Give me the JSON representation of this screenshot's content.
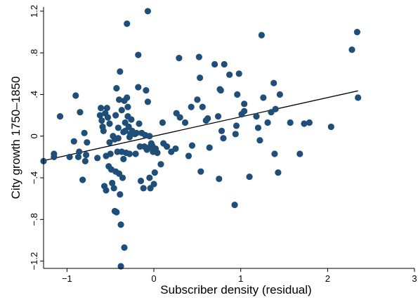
{
  "chart_data": {
    "type": "scatter",
    "title": "",
    "xlabel": "Subscriber density (residual)",
    "ylabel": "City growth 1750–1850",
    "xlim": [
      -1.27,
      3.0
    ],
    "ylim": [
      -1.27,
      1.24
    ],
    "x_ticks": [
      -1,
      0,
      1,
      2,
      3
    ],
    "x_tick_labels": [
      "−1",
      "0",
      "1",
      "2",
      "3"
    ],
    "y_ticks": [
      -1.2,
      -0.8,
      -0.4,
      0,
      0.4,
      0.8,
      1.2
    ],
    "y_tick_labels": [
      "−1.2",
      "−.8",
      "−.4",
      "0",
      ".4",
      ".8",
      "1.2"
    ],
    "grid": false,
    "colors": {
      "point": "#1f4e79",
      "fit_line": "#000000",
      "axis": "#000000"
    },
    "fit_line": {
      "x": [
        -1.27,
        2.35
      ],
      "y": [
        -0.235,
        0.435
      ]
    },
    "series": [
      {
        "points": [
          [
            -1.27,
            -0.24
          ],
          [
            -1.15,
            -0.17
          ],
          [
            -1.15,
            -0.2
          ],
          [
            -1.08,
            0.19
          ],
          [
            -0.97,
            -0.2
          ],
          [
            -0.92,
            -0.05
          ],
          [
            -0.9,
            0.39
          ],
          [
            -0.87,
            -0.2
          ],
          [
            -0.86,
            -0.15
          ],
          [
            -0.85,
            0.23
          ],
          [
            -0.82,
            -0.42
          ],
          [
            -0.8,
            0.03
          ],
          [
            -0.79,
            -0.24
          ],
          [
            -0.77,
            -0.06
          ],
          [
            -0.78,
            -0.18
          ],
          [
            -0.65,
            -0.21
          ],
          [
            -0.62,
            0.2
          ],
          [
            -0.61,
            0.27
          ],
          [
            -0.6,
            0.15
          ],
          [
            -0.59,
            0.09
          ],
          [
            -0.58,
            0.05
          ],
          [
            -0.57,
            -0.48
          ],
          [
            -0.56,
            0.22
          ],
          [
            -0.55,
            -0.19
          ],
          [
            -0.55,
            -0.52
          ],
          [
            -0.54,
            0.27
          ],
          [
            -0.53,
            0.18
          ],
          [
            -0.52,
            -0.29
          ],
          [
            -0.51,
            0.12
          ],
          [
            -0.51,
            -0.06
          ],
          [
            -0.5,
            -0.17
          ],
          [
            -0.49,
            -0.32
          ],
          [
            -0.48,
            -0.45
          ],
          [
            -0.47,
            0.0
          ],
          [
            -0.46,
            -0.5
          ],
          [
            -0.45,
            -0.03
          ],
          [
            -0.45,
            -0.72
          ],
          [
            -0.44,
            0.2
          ],
          [
            -0.44,
            -0.34
          ],
          [
            -0.43,
            0.46
          ],
          [
            -0.43,
            -0.73
          ],
          [
            -0.42,
            -0.15
          ],
          [
            -0.41,
            0.08
          ],
          [
            -0.41,
            -0.02
          ],
          [
            -0.4,
            0.35
          ],
          [
            -0.4,
            -0.36
          ],
          [
            -0.39,
            0.62
          ],
          [
            -0.39,
            -0.56
          ],
          [
            -0.38,
            -0.85
          ],
          [
            -0.38,
            -1.25
          ],
          [
            -0.37,
            0.25
          ],
          [
            -0.37,
            -0.15
          ],
          [
            -0.36,
            -0.4
          ],
          [
            -0.35,
            0.04
          ],
          [
            -0.35,
            -0.22
          ],
          [
            -0.34,
            0.34
          ],
          [
            -0.34,
            -1.07
          ],
          [
            -0.33,
            0.13
          ],
          [
            -0.33,
            0.05
          ],
          [
            -0.32,
            -0.16
          ],
          [
            -0.31,
            1.08
          ],
          [
            -0.31,
            0.37
          ],
          [
            -0.3,
            0.28
          ],
          [
            -0.3,
            0.19
          ],
          [
            -0.29,
            0.09
          ],
          [
            -0.28,
            -0.01
          ],
          [
            -0.28,
            -0.17
          ],
          [
            -0.27,
            0.02
          ],
          [
            -0.26,
            0.16
          ],
          [
            -0.25,
            0.05
          ],
          [
            -0.22,
            0.02
          ],
          [
            -0.21,
            -0.17
          ],
          [
            -0.2,
            0.03
          ],
          [
            -0.18,
            0.78
          ],
          [
            -0.18,
            0.47
          ],
          [
            -0.17,
            0.12
          ],
          [
            -0.16,
            -0.1
          ],
          [
            -0.15,
            -0.43
          ],
          [
            -0.14,
            0.03
          ],
          [
            -0.12,
            -0.5
          ],
          [
            -0.11,
            -0.1
          ],
          [
            -0.1,
            0.01
          ],
          [
            -0.09,
            0.44
          ],
          [
            -0.08,
            -0.13
          ],
          [
            -0.07,
            1.2
          ],
          [
            -0.07,
            0.33
          ],
          [
            -0.06,
            -0.11
          ],
          [
            -0.05,
            0.0
          ],
          [
            -0.05,
            -0.4
          ],
          [
            -0.04,
            -0.5
          ],
          [
            -0.03,
            -0.07
          ],
          [
            -0.02,
            -0.09
          ],
          [
            -0.01,
            -0.15
          ],
          [
            0.0,
            -0.46
          ],
          [
            0.01,
            -0.35
          ],
          [
            0.02,
            -0.12
          ],
          [
            0.04,
            -0.16
          ],
          [
            0.08,
            -0.27
          ],
          [
            0.1,
            0.13
          ],
          [
            0.11,
            -0.07
          ],
          [
            0.15,
            -0.1
          ],
          [
            0.2,
            -0.15
          ],
          [
            0.25,
            -0.12
          ],
          [
            0.26,
            0.22
          ],
          [
            0.29,
            0.75
          ],
          [
            0.3,
            0.18
          ],
          [
            0.36,
            0.13
          ],
          [
            0.4,
            -0.19
          ],
          [
            0.43,
            0.28
          ],
          [
            0.44,
            -0.09
          ],
          [
            0.5,
            0.35
          ],
          [
            0.52,
            0.76
          ],
          [
            0.53,
            0.56
          ],
          [
            0.54,
            -0.34
          ],
          [
            0.56,
            0.28
          ],
          [
            0.6,
            0.15
          ],
          [
            0.62,
            0.17
          ],
          [
            0.64,
            -0.11
          ],
          [
            0.7,
            0.69
          ],
          [
            0.74,
            0.19
          ],
          [
            0.75,
            -0.41
          ],
          [
            0.76,
            0.45
          ],
          [
            0.77,
            0.44
          ],
          [
            0.78,
            0.05
          ],
          [
            0.8,
            -0.02
          ],
          [
            0.81,
            0.69
          ],
          [
            0.87,
            0.59
          ],
          [
            0.93,
            -0.66
          ],
          [
            0.94,
            0.02
          ],
          [
            0.95,
            0.1
          ],
          [
            0.96,
            0.4
          ],
          [
            0.98,
            0.6
          ],
          [
            1.01,
            0.21
          ],
          [
            1.04,
            0.31
          ],
          [
            1.04,
            0.24
          ],
          [
            1.1,
            -0.39
          ],
          [
            1.18,
            0.19
          ],
          [
            1.2,
            0.08
          ],
          [
            1.22,
            -0.04
          ],
          [
            1.24,
            0.97
          ],
          [
            1.26,
            0.37
          ],
          [
            1.31,
            0.13
          ],
          [
            1.35,
            0.23
          ],
          [
            1.38,
            0.51
          ],
          [
            1.39,
            -0.17
          ],
          [
            1.4,
            0.26
          ],
          [
            1.43,
            -0.35
          ],
          [
            1.45,
            0.4
          ],
          [
            1.57,
            0.13
          ],
          [
            1.68,
            -0.17
          ],
          [
            1.73,
            0.12
          ],
          [
            1.79,
            0.13
          ],
          [
            2.04,
            0.09
          ],
          [
            2.28,
            0.83
          ],
          [
            2.34,
            1.0
          ],
          [
            2.35,
            0.37
          ]
        ]
      }
    ]
  }
}
